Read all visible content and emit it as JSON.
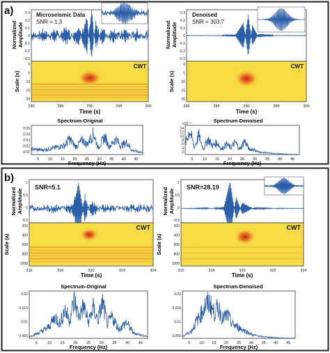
{
  "figure": {
    "panel_a_label": "a)",
    "panel_b_label": "b)",
    "colors": {
      "signal": "#2a5ea8",
      "heat_bg": "#f6dd45",
      "heat_mid": "#f39a22",
      "heat_hot": "#c3261e",
      "frame": "#222222"
    }
  },
  "chart_data": [
    {
      "type": "line",
      "panel": "a",
      "position": "top-left",
      "title": "Microseismic Data",
      "annotation": "SNR = 1.3",
      "ylabel": "Normalized\nAmplitude",
      "ylim": [
        -0.3,
        0.3
      ],
      "yticks": [
        "0.3",
        "0.2",
        "0.1",
        "0",
        "-0.1",
        "-0.2",
        "-0.3"
      ],
      "x": [
        280,
        282,
        284,
        286,
        288,
        289.5,
        290.3,
        291,
        292,
        294,
        296,
        298,
        300
      ],
      "series": [
        {
          "values": [
            0.03,
            -0.05,
            0.06,
            -0.08,
            0.1,
            -0.2,
            0.28,
            -0.15,
            0.08,
            -0.07,
            0.06,
            -0.05,
            0.04
          ]
        }
      ],
      "inset": "zoomed waveform"
    },
    {
      "type": "heatmap",
      "panel": "a",
      "position": "top-left",
      "label": "CWT",
      "xlabel": "Time  (s)",
      "ylabel": "Scale (s)",
      "xlim": [
        280,
        300
      ],
      "xticks": [
        "280",
        "285",
        "290",
        "295",
        "300"
      ],
      "yticks": [
        "0",
        "5",
        "10",
        "15",
        "20"
      ],
      "hotspot": {
        "time": 290,
        "scale": 9
      }
    },
    {
      "type": "line",
      "panel": "a",
      "position": "top-right",
      "title": "Denoised",
      "annotation": "SNR = 303.7",
      "ylabel": "Normalized\nAmplitude",
      "ylim": [
        -0.3,
        0.3
      ],
      "yticks": [
        "0.3",
        "0.2",
        "0.1",
        "0",
        "-0.1",
        "-0.2",
        "-0.3"
      ],
      "x": [
        280,
        285,
        288,
        289.5,
        290.3,
        291,
        292,
        295,
        300
      ],
      "series": [
        {
          "values": [
            0,
            0,
            0.01,
            -0.15,
            0.25,
            -0.12,
            0.02,
            0,
            0
          ]
        }
      ],
      "inset": "zoomed waveform"
    },
    {
      "type": "heatmap",
      "panel": "a",
      "position": "top-right",
      "label": "CWT",
      "xlabel": "Time  (s)",
      "ylabel": "Scale (s)",
      "xlim": [
        280,
        300
      ],
      "xticks": [
        "280",
        "285",
        "290",
        "295",
        "300"
      ],
      "yticks": [
        "0",
        "5",
        "10",
        "15",
        "20"
      ],
      "hotspot": {
        "time": 290,
        "scale": 9
      }
    },
    {
      "type": "line",
      "panel": "a",
      "position": "bottom-left",
      "title": "Spectrum-Original",
      "xlabel": "Frequency (Hz)",
      "xlim": [
        0,
        50
      ],
      "xticks": [
        "5",
        "10",
        "15",
        "20",
        "25",
        "30",
        "35",
        "40",
        "45"
      ],
      "ylim": [
        0,
        0.05
      ],
      "yticks": [
        "0.05",
        "0.04",
        "0.03",
        "0.02",
        "0.01"
      ],
      "x": [
        0,
        5,
        10,
        15,
        17,
        20,
        23,
        25,
        28,
        30,
        33,
        35,
        38,
        40,
        43,
        45,
        48,
        50
      ],
      "series": [
        {
          "values": [
            0.01,
            0.008,
            0.012,
            0.016,
            0.028,
            0.014,
            0.026,
            0.018,
            0.038,
            0.012,
            0.032,
            0.014,
            0.028,
            0.016,
            0.022,
            0.008,
            0.005,
            0.004
          ]
        }
      ]
    },
    {
      "type": "line",
      "panel": "a",
      "position": "bottom-right",
      "title": "Spectrum-Denoised",
      "xlabel": "Frequency (Hz)",
      "xlim": [
        0,
        50
      ],
      "xticks": [
        "5",
        "10",
        "15",
        "20",
        "25",
        "30",
        "35",
        "40",
        "45"
      ],
      "ylim": [
        0,
        16
      ],
      "yticks": [
        "14",
        "12",
        "10",
        "8",
        "6",
        "4",
        "2"
      ],
      "y_exponent": "x10⁻³",
      "x": [
        0,
        2,
        4,
        6,
        8,
        10,
        12,
        14,
        16,
        18,
        20,
        22,
        24,
        26,
        28,
        30,
        32,
        35,
        40,
        45,
        50
      ],
      "series": [
        {
          "values": [
            6,
            14,
            4,
            11,
            3,
            9,
            5,
            7,
            3,
            6,
            4,
            7,
            3,
            8,
            3,
            3,
            1.5,
            1,
            0.5,
            0.2,
            0.1
          ]
        }
      ]
    },
    {
      "type": "line",
      "panel": "b",
      "position": "top-left",
      "annotation": "SNR=5.1",
      "ylabel": "Normalized\nAmplitude",
      "ylim": [
        -0.5,
        1
      ],
      "yticks": [
        "1",
        "0.5",
        "0",
        "-0.5"
      ],
      "x": [
        316,
        318,
        319.5,
        320,
        320.5,
        321,
        322,
        324,
        326
      ],
      "series": [
        {
          "values": [
            0.05,
            -0.08,
            0.12,
            0.9,
            -0.45,
            0.25,
            -0.1,
            0.06,
            0.04
          ]
        }
      ]
    },
    {
      "type": "heatmap",
      "panel": "b",
      "position": "top-left",
      "label": "CWT",
      "xlabel": "Time  (s)",
      "ylabel": "Scale (a)",
      "xlim": [
        316,
        325.5
      ],
      "xticks": [
        "316",
        "318",
        "320",
        "322",
        "324"
      ],
      "yticks": [
        "200",
        "400",
        "600",
        "800",
        "1000"
      ],
      "hotspot": {
        "time": 320.3,
        "scale": 330
      }
    },
    {
      "type": "line",
      "panel": "b",
      "position": "top-right",
      "annotation": "SNR=28.19",
      "ylabel": "Normalized\nAmplitude",
      "ylim": [
        -0.5,
        1
      ],
      "yticks": [
        "1",
        "0.5",
        "0",
        "-0.5"
      ],
      "x": [
        316,
        318,
        319.5,
        320,
        320.5,
        321,
        322,
        324,
        326
      ],
      "series": [
        {
          "values": [
            0,
            -0.02,
            0.05,
            0.95,
            -0.4,
            0.2,
            -0.04,
            0.01,
            0
          ]
        }
      ],
      "inset": "zoomed waveform"
    },
    {
      "type": "heatmap",
      "panel": "b",
      "position": "top-right",
      "label": "CWT",
      "xlabel": "Time  (s)",
      "ylabel": "Scale (a)",
      "xlim": [
        316,
        325.5
      ],
      "xticks": [
        "316",
        "318",
        "320",
        "322",
        "324"
      ],
      "yticks": [
        "200",
        "400",
        "600",
        "800",
        "1000"
      ],
      "hotspot": {
        "time": 320.8,
        "scale": 330
      }
    },
    {
      "type": "line",
      "panel": "b",
      "position": "bottom-left",
      "title": "Spectrum-Original",
      "xlabel": "Frequency (Hz)",
      "xlim": [
        0,
        50
      ],
      "xticks": [
        "5",
        "10",
        "15",
        "20",
        "25",
        "30",
        "35",
        "40",
        "45"
      ],
      "ylim": [
        0,
        0.025
      ],
      "yticks": [
        "0.02",
        "0.015",
        "0.01",
        "0.005"
      ],
      "x": [
        0,
        4,
        8,
        11,
        13,
        15,
        17,
        19,
        21,
        23,
        25,
        27,
        29,
        31,
        33,
        35,
        38,
        41,
        44,
        47,
        50
      ],
      "series": [
        {
          "values": [
            0.001,
            0.003,
            0.006,
            0.012,
            0.008,
            0.016,
            0.01,
            0.021,
            0.012,
            0.018,
            0.009,
            0.017,
            0.01,
            0.02,
            0.008,
            0.012,
            0.005,
            0.009,
            0.003,
            0.002,
            0.001
          ]
        }
      ]
    },
    {
      "type": "line",
      "panel": "b",
      "position": "bottom-right",
      "title": "Spectrum-Denoised",
      "xlabel": "Frequency (Hz)",
      "xlim": [
        0,
        50
      ],
      "xticks": [
        "5",
        "10",
        "15",
        "20",
        "25",
        "30",
        "35",
        "40",
        "45"
      ],
      "ylim": [
        0,
        0.025
      ],
      "yticks": [
        "0.02",
        "0.015",
        "0.01",
        "0.005"
      ],
      "x": [
        0,
        4,
        6,
        8,
        10,
        12,
        14,
        16,
        18,
        20,
        22,
        25,
        28,
        31,
        35,
        40,
        45,
        50
      ],
      "series": [
        {
          "values": [
            0.001,
            0.004,
            0.009,
            0.013,
            0.018,
            0.02,
            0.014,
            0.017,
            0.011,
            0.013,
            0.008,
            0.006,
            0.004,
            0.002,
            0.001,
            0.0005,
            0.0002,
            0.0001
          ]
        }
      ]
    }
  ]
}
